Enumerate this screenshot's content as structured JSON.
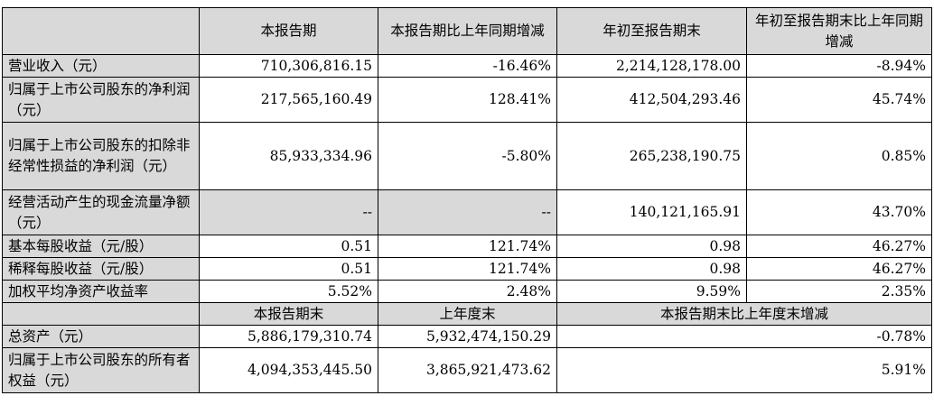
{
  "header": {
    "blank": "",
    "cols": [
      "本报告期",
      "本报告期比上年同期增减",
      "年初至报告期末",
      "年初至报告期末比上年同期增减"
    ]
  },
  "rows": [
    {
      "label": "营业收入（元）",
      "v1": "710,306,816.15",
      "v2": "-16.46%",
      "v3": "2,214,128,178.00",
      "v4": "-8.94%"
    },
    {
      "label": "归属于上市公司股东的净利润（元）",
      "v1": "217,565,160.49",
      "v2": "128.41%",
      "v3": "412,504,293.46",
      "v4": "45.74%"
    },
    {
      "label": "归属于上市公司股东的扣除非经常性损益的净利润（元）",
      "v1": "85,933,334.96",
      "v2": "-5.80%",
      "v3": "265,238,190.75",
      "v4": "0.85%"
    },
    {
      "label": "经营活动产生的现金流量净额（元）",
      "v1": "--",
      "v2": "--",
      "v3": "140,121,165.91",
      "v4": "43.70%"
    },
    {
      "label": "基本每股收益（元/股）",
      "v1": "0.51",
      "v2": "121.74%",
      "v3": "0.98",
      "v4": "46.27%"
    },
    {
      "label": "稀释每股收益（元/股）",
      "v1": "0.51",
      "v2": "121.74%",
      "v3": "0.98",
      "v4": "46.27%"
    },
    {
      "label": "加权平均净资产收益率",
      "v1": "5.52%",
      "v2": "2.48%",
      "v3": "9.59%",
      "v4": "2.35%"
    }
  ],
  "header2": {
    "cols": [
      "本报告期末",
      "上年度末",
      "本报告期末比上年度末增减"
    ]
  },
  "rows2": [
    {
      "label": "总资产（元）",
      "v1": "5,886,179,310.74",
      "v2": "5,932,474,150.29",
      "v3": "-0.78%"
    },
    {
      "label": "归属于上市公司股东的所有者权益（元）",
      "v1": "4,094,353,445.50",
      "v2": "3,865,921,473.62",
      "v3": "5.91%"
    }
  ]
}
